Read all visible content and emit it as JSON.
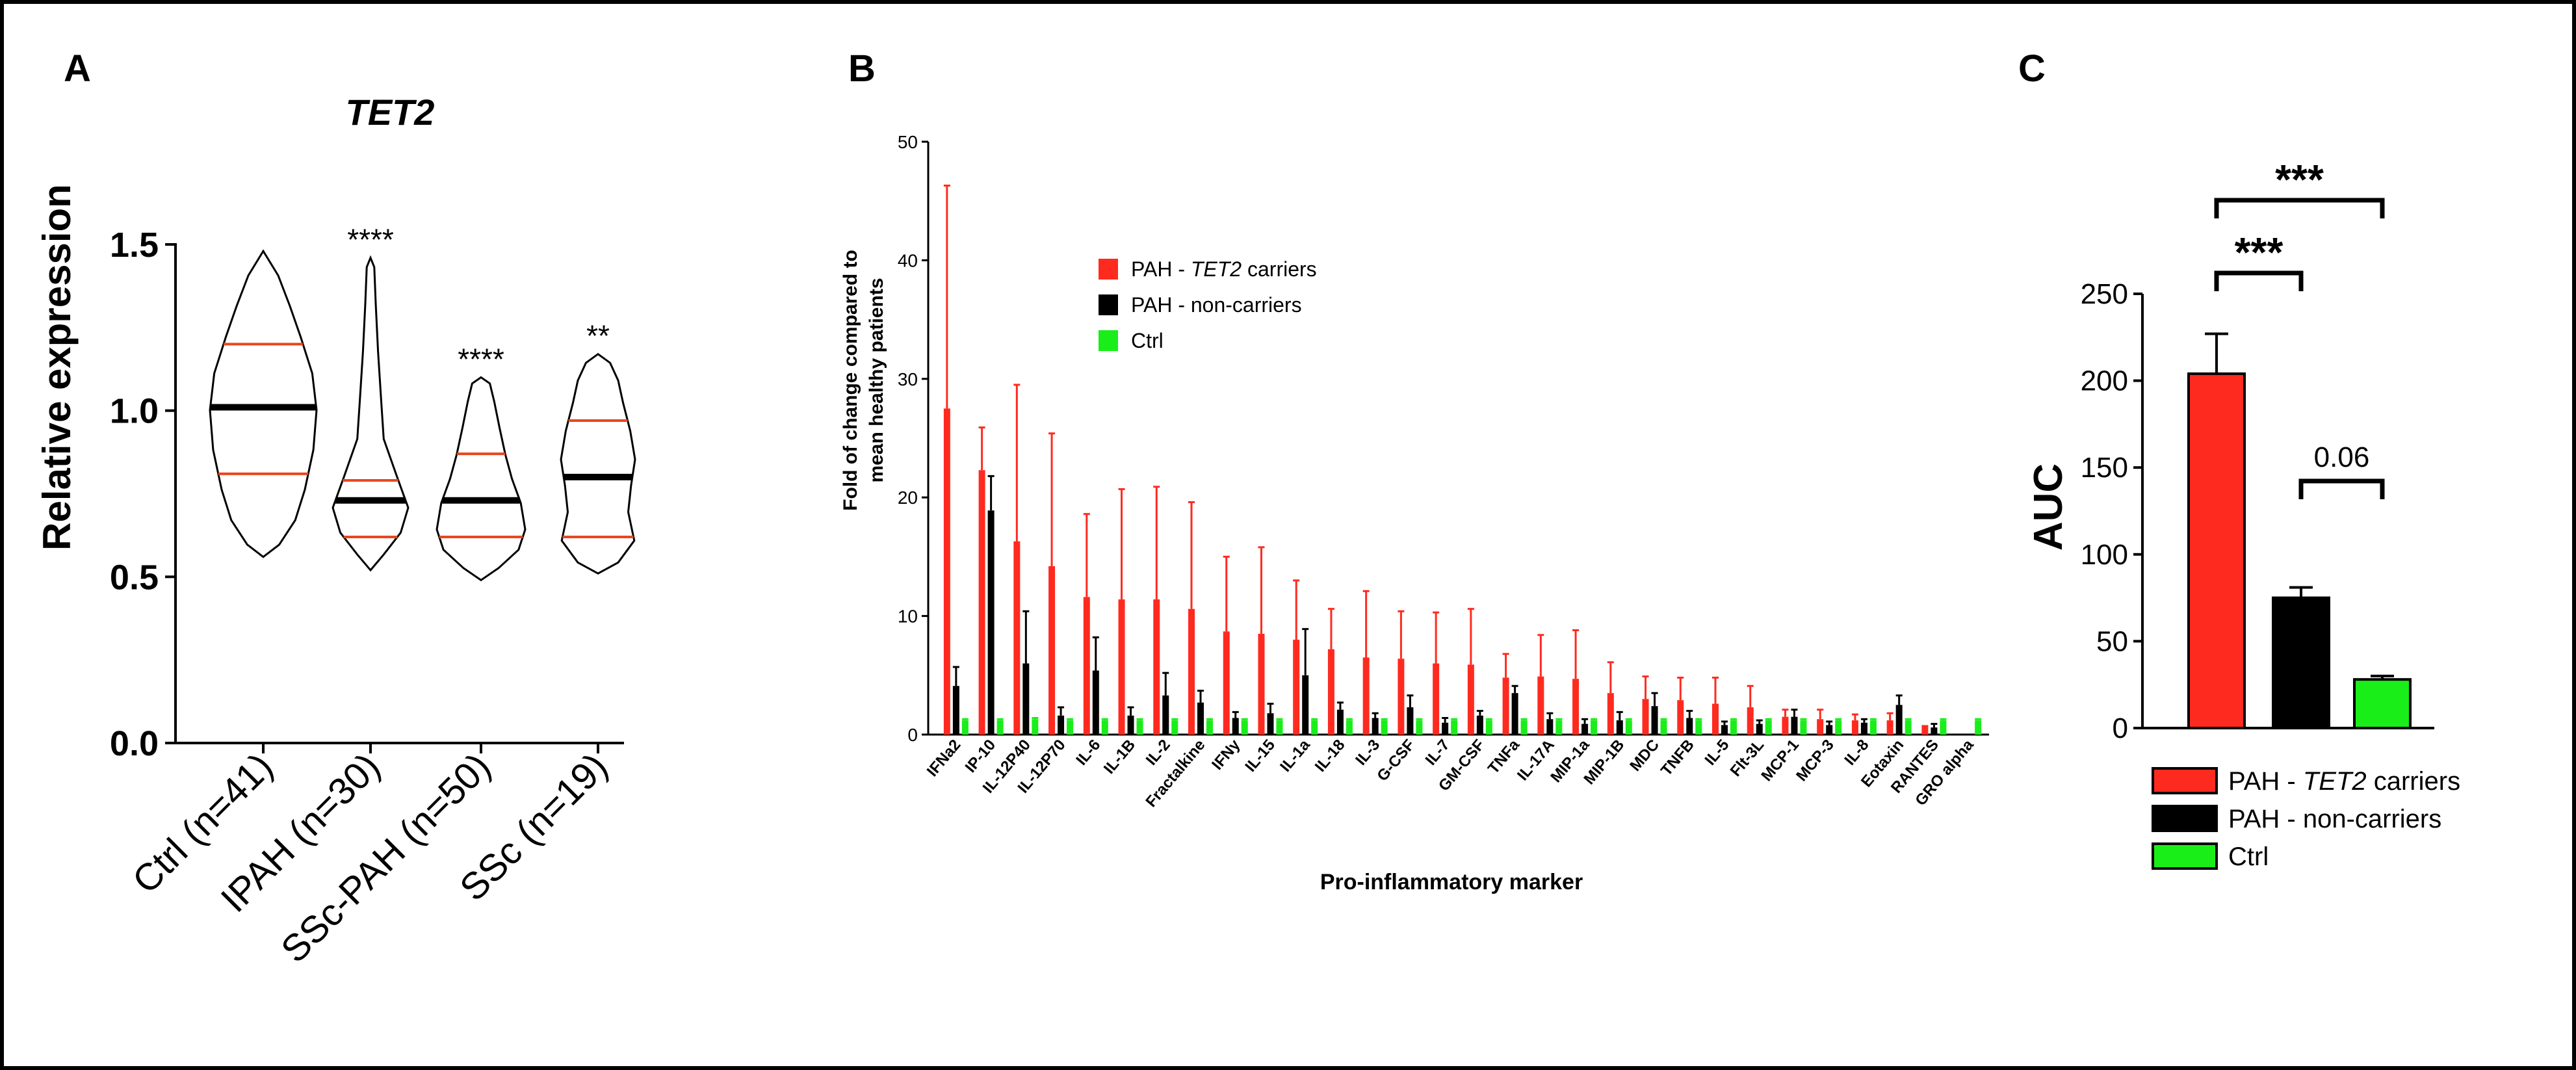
{
  "colors": {
    "red": "#ff2a1f",
    "black": "#000000",
    "green": "#19ee19",
    "red_line": "#e8471f",
    "frame": "#000000"
  },
  "chart_data": [
    {
      "panel": "A",
      "type": "violin",
      "title": "TET2",
      "ylabel": "Relative expression",
      "ylim": [
        0.0,
        1.5
      ],
      "yticks": [
        "0.0",
        "0.5",
        "1.0",
        "1.5"
      ],
      "categories": [
        "Ctrl (n=41)",
        "IPAH (n=30)",
        "SSc-PAH (n=50)",
        "SSc (n=19)"
      ],
      "median": [
        1.01,
        0.73,
        0.73,
        0.8
      ],
      "q1": [
        0.81,
        0.62,
        0.62,
        0.62
      ],
      "q3": [
        1.2,
        0.79,
        0.87,
        0.97
      ],
      "min": [
        0.56,
        0.52,
        0.49,
        0.51
      ],
      "max": [
        1.48,
        1.46,
        1.1,
        1.17
      ],
      "significance": [
        "",
        "****",
        "****",
        "**"
      ]
    },
    {
      "panel": "B",
      "type": "bar",
      "xlabel": "Pro-inflammatory marker",
      "ylabel": "Fold of change compared to mean healthy patients",
      "ylabel_lines": [
        "Fold of change compared to",
        "mean healthy patients"
      ],
      "ylim": [
        0,
        50
      ],
      "yticks": [
        "0",
        "10",
        "20",
        "30",
        "40",
        "50"
      ],
      "categories": [
        "IFNa2",
        "IP-10",
        "IL-12P40",
        "IL-12P70",
        "IL-6",
        "IL-1B",
        "IL-2",
        "Fractalkine",
        "IFNy",
        "IL-15",
        "IL-1a",
        "IL-18",
        "IL-3",
        "G-CSF",
        "IL-7",
        "GM-CSF",
        "TNFa",
        "IL-17A",
        "MIP-1a",
        "MIP-1B",
        "MDC",
        "TNFB",
        "IL-5",
        "Flt-3L",
        "MCP-1",
        "MCP-3",
        "IL-8",
        "Eotaxin",
        "RANTES",
        "GRO alpha"
      ],
      "series": [
        {
          "name": "PAH - TET2 carriers",
          "color_key": "red",
          "values": [
            27.5,
            22.3,
            16.3,
            14.2,
            11.6,
            11.4,
            11.4,
            10.6,
            8.7,
            8.5,
            8.0,
            7.2,
            6.5,
            6.4,
            6.0,
            5.9,
            4.8,
            4.9,
            4.7,
            3.5,
            3.0,
            2.9,
            2.6,
            2.3,
            1.5,
            1.3,
            1.2,
            1.2,
            0.8,
            0.0
          ],
          "errors": [
            18.8,
            3.6,
            13.2,
            11.2,
            7.0,
            9.3,
            9.5,
            9.0,
            6.3,
            7.3,
            5.0,
            3.4,
            5.6,
            4.0,
            4.3,
            4.7,
            2.0,
            3.5,
            4.1,
            2.6,
            1.9,
            1.9,
            2.2,
            1.8,
            0.6,
            0.8,
            0.5,
            0.6,
            0.0,
            0.0
          ]
        },
        {
          "name": "PAH - non-carriers",
          "color_key": "black",
          "values": [
            4.1,
            18.9,
            6.0,
            1.6,
            5.4,
            1.6,
            3.3,
            2.7,
            1.4,
            1.8,
            5.0,
            2.1,
            1.4,
            2.3,
            1.0,
            1.6,
            3.5,
            1.3,
            0.9,
            1.2,
            2.4,
            1.4,
            0.8,
            0.9,
            1.5,
            0.8,
            1.0,
            2.5,
            0.6,
            0.0
          ],
          "errors": [
            1.6,
            2.9,
            4.4,
            0.7,
            2.8,
            0.7,
            1.9,
            1.0,
            0.5,
            0.8,
            3.9,
            0.6,
            0.4,
            1.0,
            0.4,
            0.4,
            0.6,
            0.5,
            0.4,
            0.7,
            1.1,
            0.6,
            0.3,
            0.3,
            0.6,
            0.3,
            0.3,
            0.8,
            0.3,
            0.0
          ]
        },
        {
          "name": "Ctrl",
          "color_key": "green",
          "values": [
            1.2,
            1.2,
            1.3,
            1.2,
            1.2,
            1.2,
            1.2,
            1.2,
            1.2,
            1.2,
            1.2,
            1.2,
            1.2,
            1.2,
            1.2,
            1.2,
            1.2,
            1.2,
            1.2,
            1.2,
            1.2,
            1.2,
            1.2,
            1.2,
            1.2,
            1.2,
            1.2,
            1.2,
            1.2,
            1.2
          ],
          "errors": [
            0.1,
            0.1,
            0.1,
            0.1,
            0.1,
            0.1,
            0.1,
            0.1,
            0.1,
            0.1,
            0.1,
            0.1,
            0.1,
            0.1,
            0.1,
            0.1,
            0.1,
            0.1,
            0.1,
            0.1,
            0.1,
            0.1,
            0.1,
            0.1,
            0.1,
            0.1,
            0.1,
            0.1,
            0.1,
            0.1
          ]
        }
      ],
      "legend": [
        {
          "prefix": "PAH - ",
          "italic": "TET2",
          "suffix": " carriers",
          "color_key": "red"
        },
        {
          "prefix": "PAH - non-carriers",
          "italic": "",
          "suffix": "",
          "color_key": "black"
        },
        {
          "prefix": "Ctrl",
          "italic": "",
          "suffix": "",
          "color_key": "green"
        }
      ]
    },
    {
      "panel": "C",
      "type": "bar",
      "ylabel": "AUC",
      "ylim": [
        0,
        250
      ],
      "yticks": [
        "0",
        "50",
        "100",
        "150",
        "200",
        "250"
      ],
      "categories": [
        "PAH - TET2 carriers",
        "PAH - non-carriers",
        "Ctrl"
      ],
      "values": [
        204,
        75,
        28
      ],
      "errors": [
        23,
        6,
        2
      ],
      "color_keys": [
        "red",
        "black",
        "green"
      ],
      "comparisons": [
        {
          "from": 0,
          "to": 2,
          "label": "***"
        },
        {
          "from": 0,
          "to": 1,
          "label": "***"
        },
        {
          "from": 1,
          "to": 2,
          "label": "0.06"
        }
      ],
      "legend": [
        {
          "prefix": "PAH - ",
          "italic": "TET2",
          "suffix": " carriers",
          "color_key": "red"
        },
        {
          "prefix": "PAH - non-carriers",
          "italic": "",
          "suffix": "",
          "color_key": "black"
        },
        {
          "prefix": "Ctrl",
          "italic": "",
          "suffix": "",
          "color_key": "green"
        }
      ]
    }
  ],
  "panel_labels": [
    "A",
    "B",
    "C"
  ]
}
